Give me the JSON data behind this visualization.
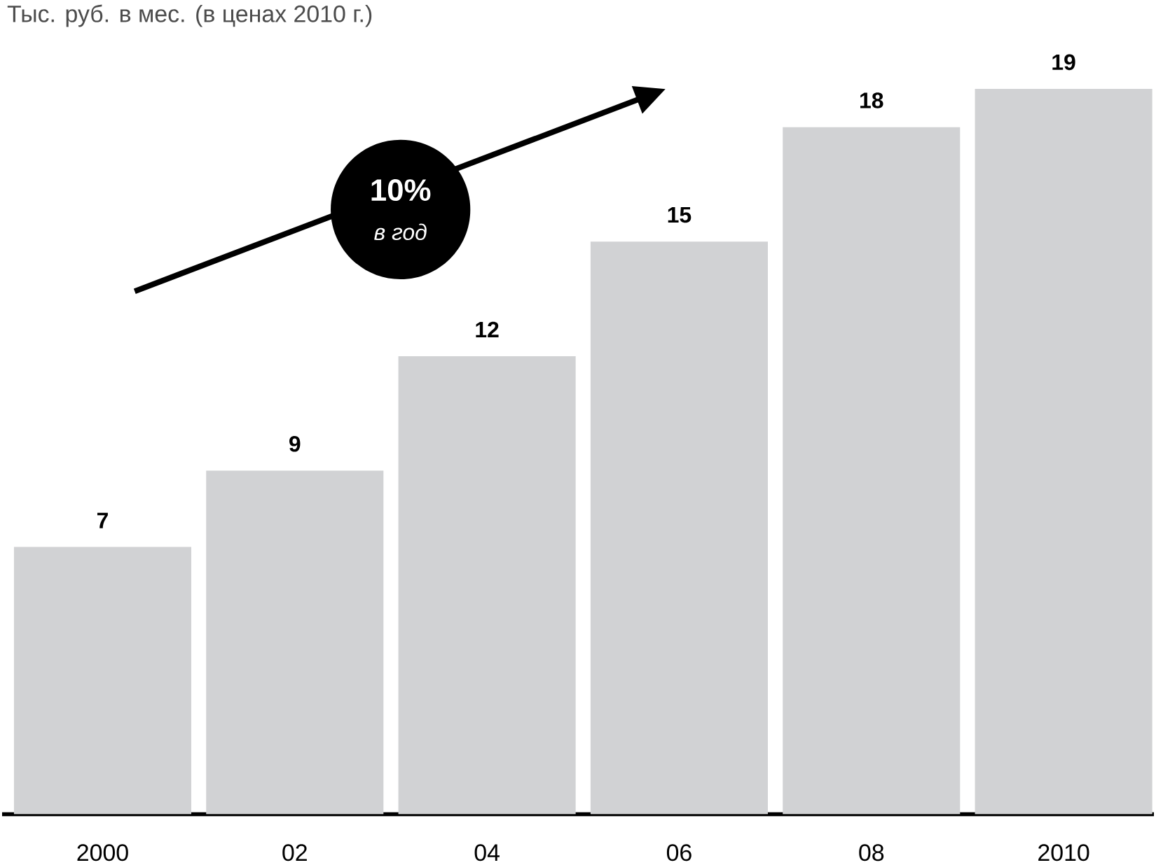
{
  "chart_data": {
    "type": "bar",
    "title": "Тыс. руб. в мес. (в ценах 2010 г.)",
    "categories": [
      "2000",
      "02",
      "04",
      "06",
      "08",
      "2010"
    ],
    "values": [
      7,
      9,
      12,
      15,
      18,
      19
    ],
    "color": "#d1d2d4",
    "data_labels": true,
    "annotations": [
      "10%",
      "в год"
    ]
  }
}
